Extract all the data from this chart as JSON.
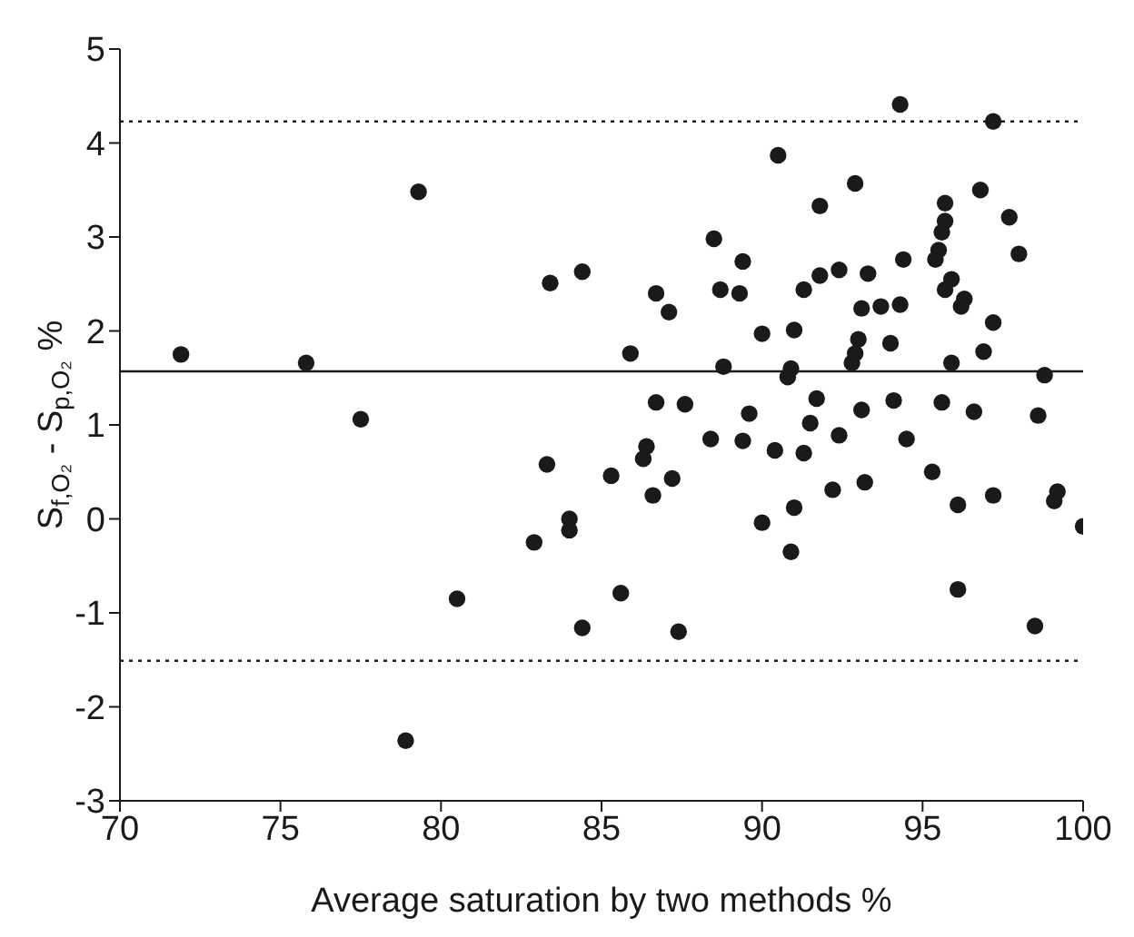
{
  "chart_data": {
    "type": "scatter",
    "xlabel": "Average saturation by two methods  %",
    "ylabel": "S$_{f,O₂}$ - S$_{p,O₂}$  %",
    "xlim": [
      70,
      100
    ],
    "xticks": [
      70,
      75,
      80,
      85,
      90,
      95,
      100
    ],
    "ylim": [
      -3,
      5
    ],
    "yticks": [
      -3,
      -2,
      -1,
      0,
      1,
      2,
      3,
      4,
      5
    ],
    "grid": false,
    "legend": false,
    "marker": "circle",
    "ref_lines": [
      {
        "axis": "y",
        "value": 1.57,
        "color": "#1a1a1a",
        "line_style": "solid"
      },
      {
        "axis": "y",
        "value": 4.23,
        "color": "#1a1a1a",
        "line_style": "dotted"
      },
      {
        "axis": "y",
        "value": -1.51,
        "color": "#1a1a1a",
        "line_style": "dotted"
      }
    ],
    "series": [
      {
        "color": "#1a1a1a",
        "x": [
          71.9,
          75.8,
          77.5,
          79.3,
          83.4,
          84.4,
          78.9,
          80.5,
          82.9,
          83.3,
          84.0,
          84.0,
          84.4,
          94.3,
          97.2,
          90.5,
          92.9,
          91.8,
          95.7,
          96.8,
          95.7,
          95.6,
          97.7,
          88.5,
          95.5,
          95.4,
          98.0,
          89.4,
          94.4,
          92.4,
          93.3,
          91.8,
          91.3,
          86.7,
          88.7,
          89.3,
          95.9,
          95.7,
          96.3,
          96.2,
          93.1,
          93.7,
          94.3,
          87.1,
          97.2,
          90.0,
          91.0,
          93.0,
          94.0,
          96.9,
          92.9,
          92.8,
          95.9,
          85.9,
          88.8,
          90.9,
          90.8,
          98.8,
          86.7,
          87.6,
          89.6,
          91.7,
          91.5,
          93.1,
          94.1,
          95.6,
          96.6,
          98.6,
          86.4,
          86.3,
          88.4,
          89.4,
          90.4,
          91.3,
          92.4,
          94.5,
          85.3,
          87.2,
          86.6,
          95.3,
          92.2,
          93.2,
          91.0,
          90.0,
          90.9,
          96.1,
          97.2,
          99.2,
          99.1,
          100.0,
          85.6,
          87.4,
          96.1,
          98.5
        ],
        "values": [
          1.75,
          1.66,
          1.06,
          3.48,
          2.51,
          2.63,
          -2.36,
          -0.85,
          -0.25,
          0.58,
          0.0,
          -0.12,
          -1.16,
          4.41,
          4.23,
          3.87,
          3.57,
          3.33,
          3.36,
          3.5,
          3.17,
          3.05,
          3.21,
          2.98,
          2.86,
          2.76,
          2.82,
          2.74,
          2.76,
          2.65,
          2.61,
          2.59,
          2.44,
          2.4,
          2.44,
          2.4,
          2.55,
          2.44,
          2.34,
          2.26,
          2.24,
          2.26,
          2.28,
          2.2,
          2.09,
          1.97,
          2.01,
          1.91,
          1.87,
          1.78,
          1.76,
          1.66,
          1.66,
          1.76,
          1.62,
          1.6,
          1.51,
          1.53,
          1.24,
          1.22,
          1.12,
          1.28,
          1.02,
          1.16,
          1.26,
          1.24,
          1.14,
          1.1,
          0.77,
          0.64,
          0.85,
          0.83,
          0.73,
          0.7,
          0.89,
          0.85,
          0.46,
          0.43,
          0.25,
          0.5,
          0.31,
          0.39,
          0.12,
          -0.04,
          -0.35,
          0.15,
          0.25,
          0.29,
          0.19,
          -0.08,
          -0.79,
          -1.2,
          -0.75,
          -1.14
        ]
      }
    ]
  }
}
